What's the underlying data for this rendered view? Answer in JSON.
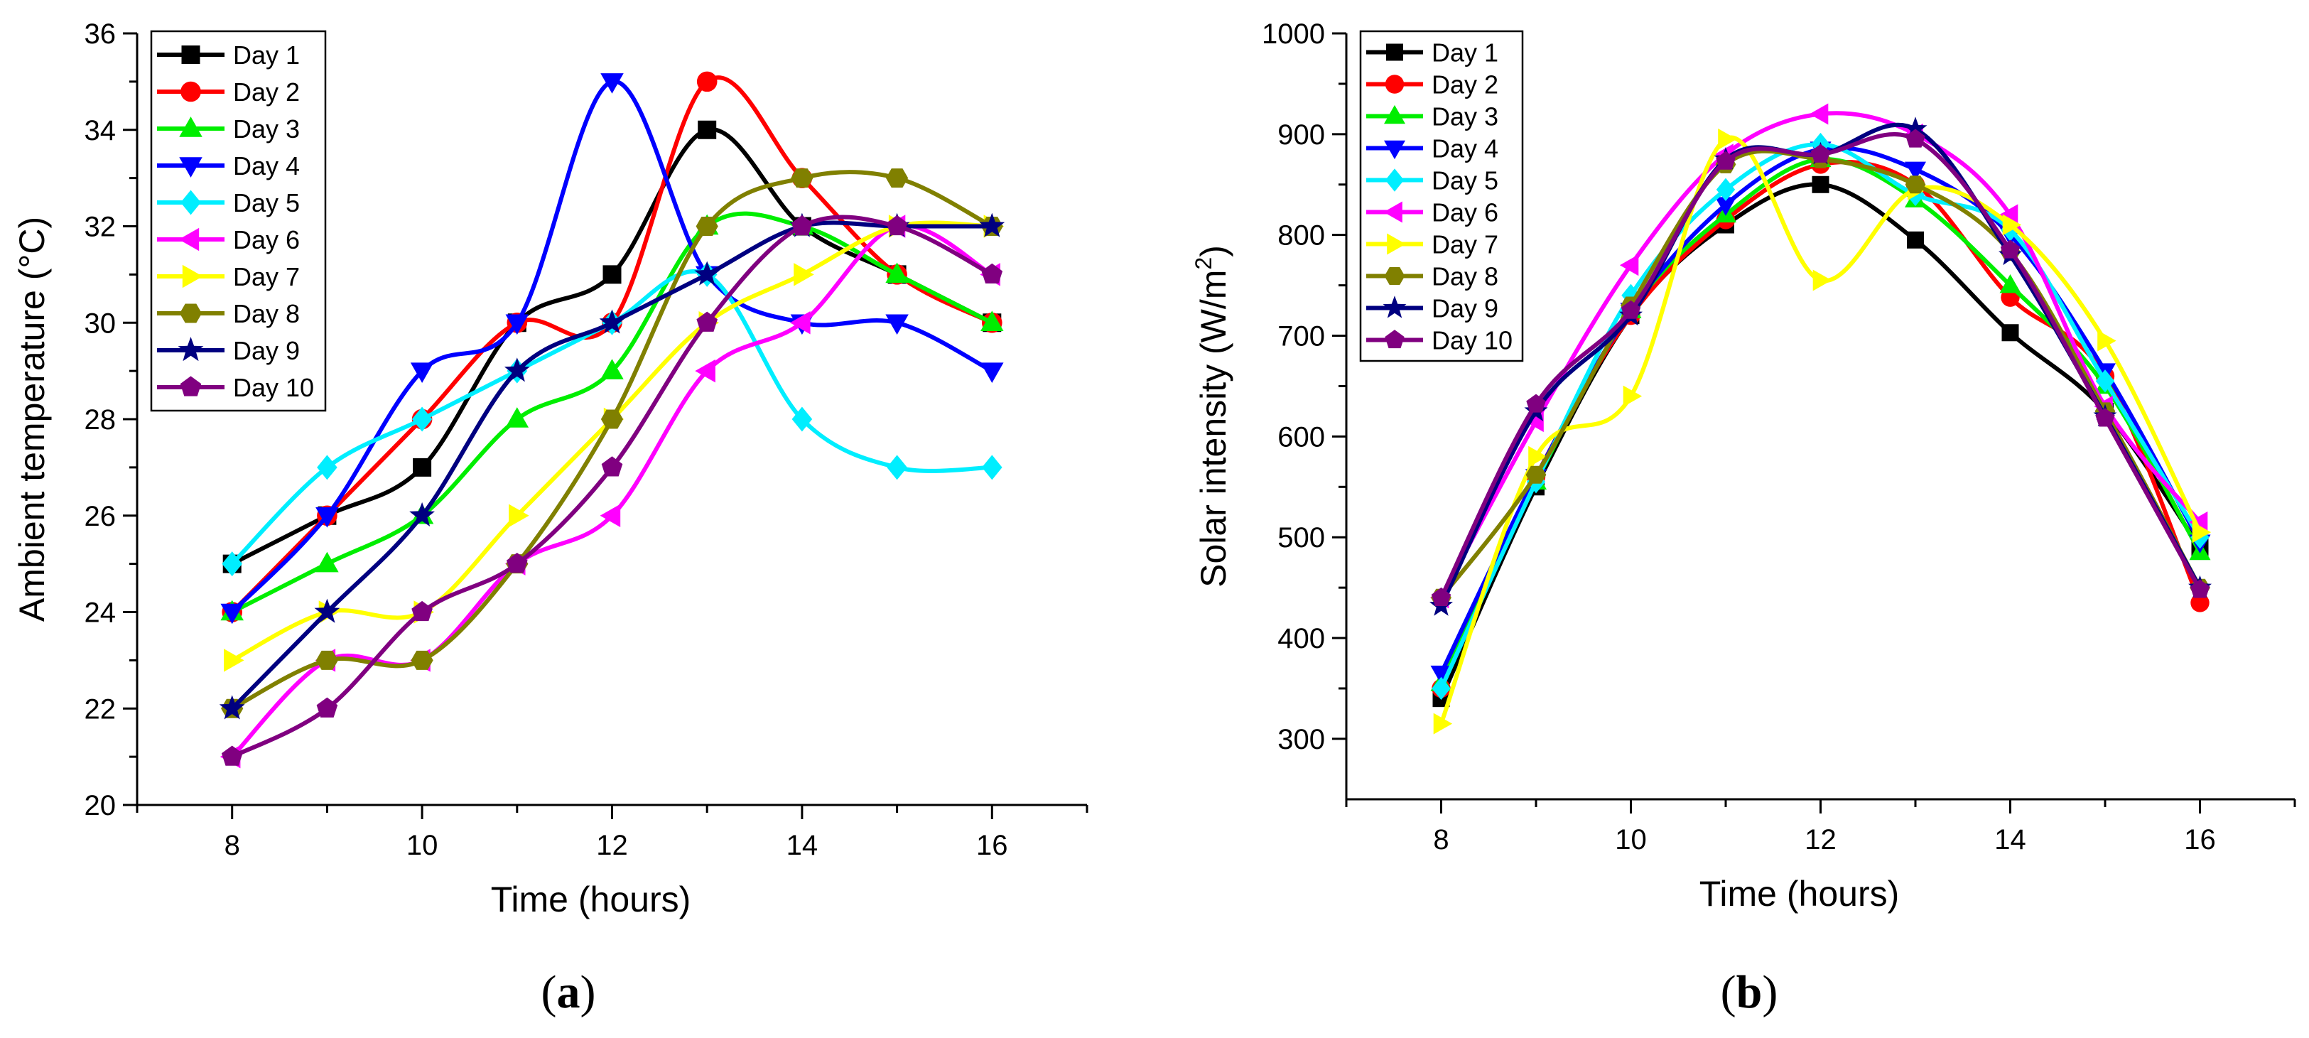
{
  "figure": {
    "panels": [
      {
        "label_open": "(",
        "label_letter": "a",
        "label_close": ")"
      },
      {
        "label_open": "(",
        "label_letter": "b",
        "label_close": ")"
      }
    ]
  },
  "chart_data": [
    {
      "type": "line",
      "title": "",
      "xlabel": "Time (hours)",
      "ylabel": "Ambient temperature (°C)",
      "xlim": [
        7,
        17
      ],
      "ylim": [
        20,
        36
      ],
      "xticks": [
        8,
        10,
        12,
        14,
        16
      ],
      "yticks": [
        20,
        22,
        24,
        26,
        28,
        30,
        32,
        34,
        36
      ],
      "grid": false,
      "legend": "top-left",
      "x": [
        8,
        9,
        10,
        11,
        12,
        13,
        14,
        15,
        16
      ],
      "series": [
        {
          "name": "Day 1",
          "color": "#000000",
          "marker": "square",
          "values": [
            25,
            26,
            27,
            30,
            31,
            34,
            32,
            31,
            30
          ]
        },
        {
          "name": "Day 2",
          "color": "#ff0000",
          "marker": "circle",
          "values": [
            24,
            26,
            28,
            30,
            30,
            35,
            33,
            31,
            30
          ]
        },
        {
          "name": "Day 3",
          "color": "#00ee00",
          "marker": "triangle-up",
          "values": [
            24,
            25,
            26,
            28,
            29,
            32,
            32,
            31,
            30
          ]
        },
        {
          "name": "Day 4",
          "color": "#0000ff",
          "marker": "triangle-down",
          "values": [
            24,
            26,
            29,
            30,
            35,
            31,
            30,
            30,
            29
          ]
        },
        {
          "name": "Day 5",
          "color": "#00eeff",
          "marker": "diamond",
          "values": [
            25,
            27,
            28,
            29,
            30,
            31,
            28,
            27,
            27
          ]
        },
        {
          "name": "Day 6",
          "color": "#ff00ff",
          "marker": "triangle-left",
          "values": [
            21,
            23,
            23,
            25,
            26,
            29,
            30,
            32,
            31
          ]
        },
        {
          "name": "Day 7",
          "color": "#ffff00",
          "marker": "triangle-right",
          "values": [
            23,
            24,
            24,
            26,
            28,
            30,
            31,
            32,
            32
          ]
        },
        {
          "name": "Day 8",
          "color": "#808000",
          "marker": "hexagon",
          "values": [
            22,
            23,
            23,
            25,
            28,
            32,
            33,
            33,
            32
          ]
        },
        {
          "name": "Day 9",
          "color": "#000080",
          "marker": "star",
          "values": [
            22,
            24,
            26,
            29,
            30,
            31,
            32,
            32,
            32
          ]
        },
        {
          "name": "Day 10",
          "color": "#800080",
          "marker": "pentagon",
          "values": [
            21,
            22,
            24,
            25,
            27,
            30,
            32,
            32,
            31
          ]
        }
      ]
    },
    {
      "type": "line",
      "title": "",
      "xlabel": "Time (hours)",
      "ylabel": "Solar intensity (W/m²)",
      "ylabel_base": "Solar intensity (W/m",
      "ylabel_sup": "2",
      "ylabel_end": ")",
      "xlim": [
        7,
        17
      ],
      "ylim": [
        240,
        1000
      ],
      "xticks": [
        8,
        10,
        12,
        14,
        16
      ],
      "yticks": [
        300,
        400,
        500,
        600,
        700,
        800,
        900,
        1000
      ],
      "grid": false,
      "legend": "top-left",
      "x": [
        8,
        9,
        10,
        11,
        12,
        13,
        14,
        15,
        16
      ],
      "series": [
        {
          "name": "Day 1",
          "color": "#000000",
          "marker": "square",
          "values": [
            340,
            550,
            720,
            810,
            850,
            795,
            703,
            625,
            490
          ]
        },
        {
          "name": "Day 2",
          "color": "#ff0000",
          "marker": "circle",
          "values": [
            350,
            560,
            720,
            815,
            870,
            850,
            738,
            660,
            435
          ]
        },
        {
          "name": "Day 3",
          "color": "#00ee00",
          "marker": "triangle-up",
          "values": [
            355,
            555,
            725,
            820,
            875,
            835,
            750,
            650,
            485
          ]
        },
        {
          "name": "Day 4",
          "color": "#0000ff",
          "marker": "triangle-down",
          "values": [
            365,
            560,
            725,
            830,
            885,
            865,
            800,
            665,
            495
          ]
        },
        {
          "name": "Day 5",
          "color": "#00eeff",
          "marker": "diamond",
          "values": [
            350,
            555,
            740,
            845,
            890,
            840,
            805,
            655,
            500
          ]
        },
        {
          "name": "Day 6",
          "color": "#ff00ff",
          "marker": "triangle-left",
          "values": [
            440,
            615,
            770,
            880,
            920,
            900,
            820,
            630,
            515
          ]
        },
        {
          "name": "Day 7",
          "color": "#ffff00",
          "marker": "triangle-right",
          "values": [
            315,
            580,
            640,
            895,
            755,
            845,
            810,
            695,
            505
          ]
        },
        {
          "name": "Day 8",
          "color": "#808000",
          "marker": "hexagon",
          "values": [
            440,
            562,
            730,
            870,
            875,
            850,
            783,
            625,
            450
          ]
        },
        {
          "name": "Day 9",
          "color": "#000080",
          "marker": "star",
          "values": [
            432,
            625,
            720,
            875,
            880,
            905,
            780,
            620,
            450
          ]
        },
        {
          "name": "Day 10",
          "color": "#800080",
          "marker": "pentagon",
          "values": [
            440,
            632,
            725,
            873,
            880,
            895,
            785,
            618,
            448
          ]
        }
      ]
    }
  ]
}
